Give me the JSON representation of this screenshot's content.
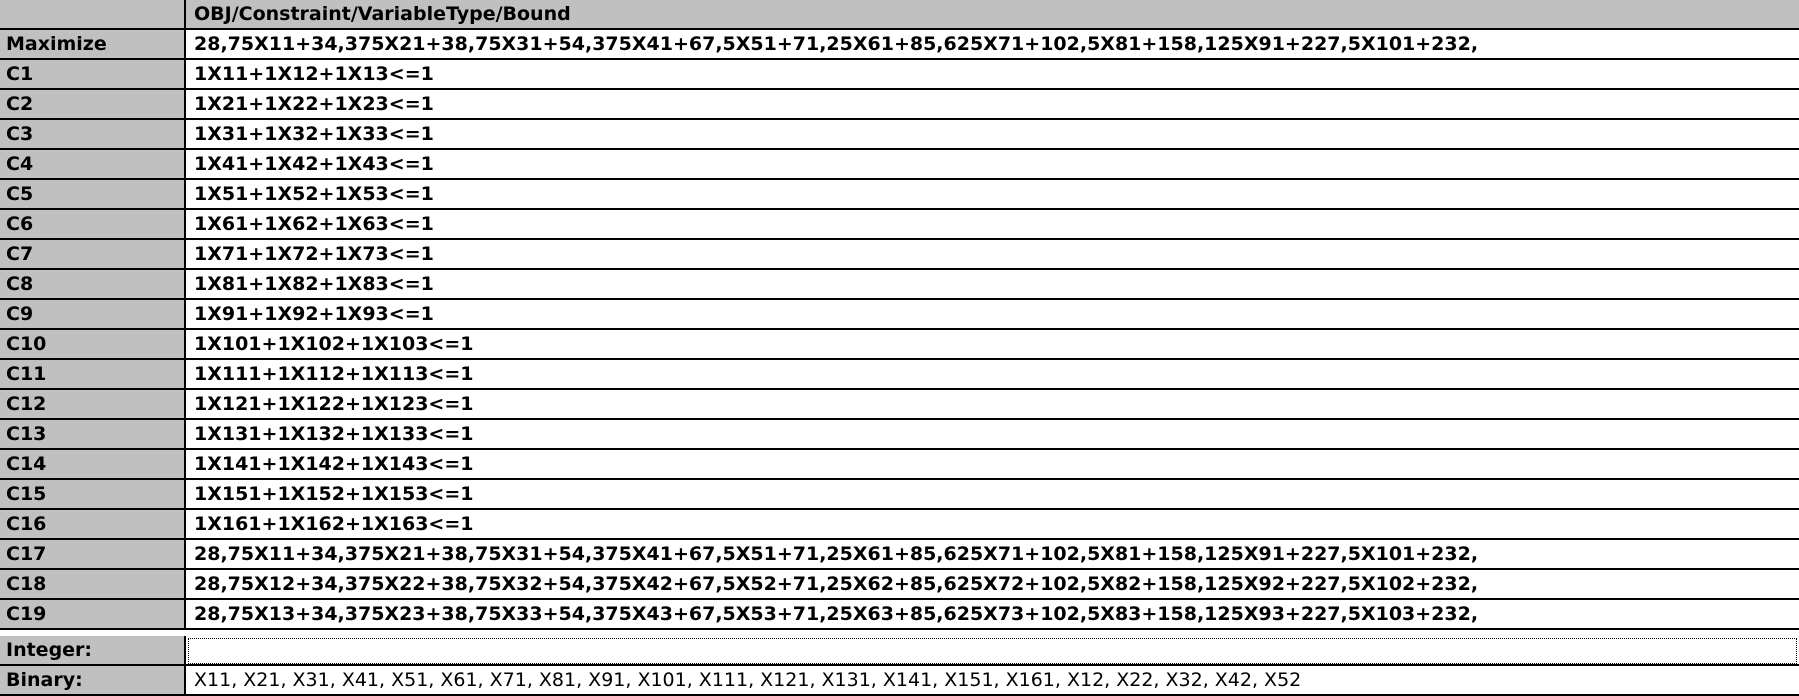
{
  "table": {
    "column_header": "OBJ/Constraint/VariableType/Bound",
    "rows": [
      {
        "label": "Maximize",
        "value": "28,75X11+34,375X21+38,75X31+54,375X41+67,5X51+71,25X61+85,625X71+102,5X81+158,125X91+227,5X101+232,"
      },
      {
        "label": "C1",
        "value": "1X11+1X12+1X13<=1"
      },
      {
        "label": "C2",
        "value": "1X21+1X22+1X23<=1"
      },
      {
        "label": "C3",
        "value": "1X31+1X32+1X33<=1"
      },
      {
        "label": "C4",
        "value": "1X41+1X42+1X43<=1"
      },
      {
        "label": "C5",
        "value": "1X51+1X52+1X53<=1"
      },
      {
        "label": "C6",
        "value": "1X61+1X62+1X63<=1"
      },
      {
        "label": "C7",
        "value": "1X71+1X72+1X73<=1"
      },
      {
        "label": "C8",
        "value": "1X81+1X82+1X83<=1"
      },
      {
        "label": "C9",
        "value": "1X91+1X92+1X93<=1"
      },
      {
        "label": "C10",
        "value": "1X101+1X102+1X103<=1"
      },
      {
        "label": "C11",
        "value": "1X111+1X112+1X113<=1"
      },
      {
        "label": "C12",
        "value": "1X121+1X122+1X123<=1"
      },
      {
        "label": "C13",
        "value": "1X131+1X132+1X133<=1"
      },
      {
        "label": "C14",
        "value": "1X141+1X142+1X143<=1"
      },
      {
        "label": "C15",
        "value": "1X151+1X152+1X153<=1"
      },
      {
        "label": "C16",
        "value": "1X161+1X162+1X163<=1"
      },
      {
        "label": "C17",
        "value": "28,75X11+34,375X21+38,75X31+54,375X41+67,5X51+71,25X61+85,625X71+102,5X81+158,125X91+227,5X101+232,"
      },
      {
        "label": "C18",
        "value": "28,75X12+34,375X22+38,75X32+54,375X42+67,5X52+71,25X62+85,625X72+102,5X82+158,125X92+227,5X102+232,"
      },
      {
        "label": "C19",
        "value": "28,75X13+34,375X23+38,75X33+54,375X43+67,5X53+71,25X63+85,625X73+102,5X83+158,125X93+227,5X103+232,"
      },
      {
        "label": "Integer:",
        "value": ""
      },
      {
        "label": "Binary:",
        "value": "X11, X21, X31, X41, X51, X61, X71, X81, X91, X101, X111, X121, X131, X141, X151, X161, X12, X22, X32, X42, X52"
      }
    ]
  },
  "colors": {
    "header_background": "#c0c0c0",
    "cell_background": "#ffffff",
    "grid_line": "#000000"
  }
}
